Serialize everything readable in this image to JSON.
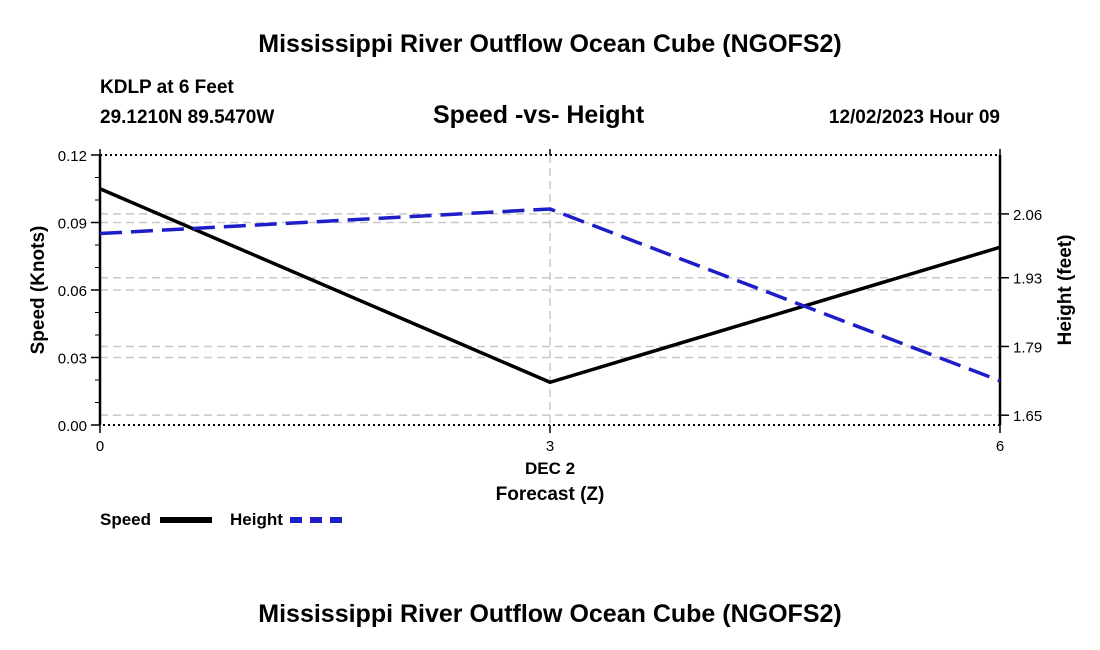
{
  "page": {
    "title_top": "Mississippi River Outflow Ocean Cube (NGOFS2)",
    "title_bottom": "Mississippi River Outflow Ocean Cube (NGOFS2)",
    "station": "KDLP at 6 Feet",
    "coords": "29.1210N  89.5470W",
    "subtitle": "Speed -vs- Height",
    "datetime": "12/02/2023 Hour 09"
  },
  "legend": {
    "speed_label": "Speed",
    "height_label": "Height"
  },
  "colors": {
    "speed": "#000000",
    "height": "#1e1ec8",
    "grid": "#c8c8c8"
  },
  "chart_data": {
    "type": "line",
    "title": "Speed -vs- Height",
    "xlabel": "Forecast (Z)",
    "xlabel_date": "DEC 2",
    "ylabel": "Speed (Knots)",
    "y2label": "Height (feet)",
    "x": [
      0,
      3,
      6
    ],
    "xlim": [
      0,
      6
    ],
    "xticks": [
      "0",
      "3",
      "6"
    ],
    "ylim": [
      0,
      0.12
    ],
    "yticks": [
      "0.00",
      "0.03",
      "0.06",
      "0.09",
      "0.12"
    ],
    "y2lim": [
      1.63,
      2.18
    ],
    "y2ticks": [
      "1.65",
      "1.79",
      "1.93",
      "2.06"
    ],
    "series": [
      {
        "name": "Speed",
        "axis": "left",
        "values": [
          0.105,
          0.019,
          0.079
        ]
      },
      {
        "name": "Height",
        "axis": "right",
        "values": [
          2.02,
          2.07,
          1.72
        ]
      }
    ]
  }
}
